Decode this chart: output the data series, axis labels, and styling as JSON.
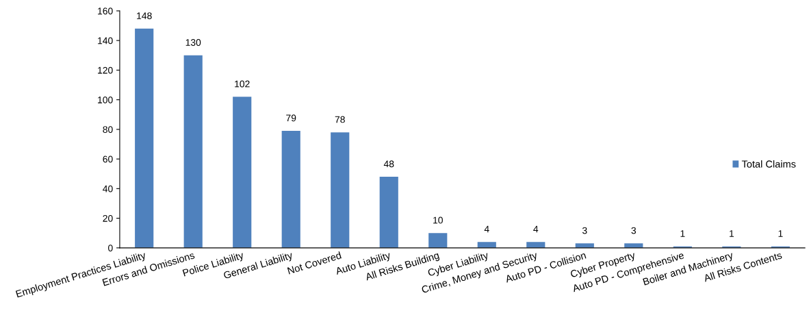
{
  "chart_data": {
    "type": "bar",
    "categories": [
      "Employment Practices Liability",
      "Errors and Omissions",
      "Police Liability",
      "General Liability",
      "Not Covered",
      "Auto Liability",
      "All Risks Building",
      "Cyber Liability",
      "Crime, Money and Security",
      "Auto PD - Collision",
      "Cyber Property",
      "Auto PD - Comprehensive",
      "Boiler and Machinery",
      "All Risks Contents"
    ],
    "series": [
      {
        "name": "Total Claims",
        "color": "#4f81bd",
        "values": [
          148,
          130,
          102,
          79,
          78,
          48,
          10,
          4,
          4,
          3,
          3,
          1,
          1,
          1
        ]
      }
    ],
    "ylim": [
      0,
      160
    ],
    "yticks": [
      0,
      20,
      40,
      60,
      80,
      100,
      120,
      140,
      160
    ],
    "grid": false,
    "legend": "right",
    "data_labels": true
  }
}
